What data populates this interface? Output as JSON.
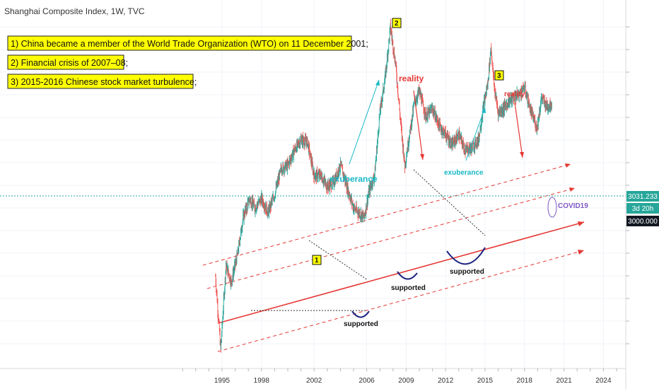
{
  "header": {
    "title": "Shanghai Composite Index, 1W, TVC"
  },
  "notes": [
    "1) China became a member of the World Trade Organization (WTO) on 11 December 2001;",
    "2) Financial crisis of 2007–08;",
    "3) 2015-2016 Chinese stock market turbulence;"
  ],
  "annotations": {
    "exuberance": "exuberance",
    "reality": "reality",
    "supported": "supported",
    "covid": "COVID19",
    "markers": [
      "1",
      "2",
      "3"
    ]
  },
  "price_scale": {
    "last_price": "3031.233",
    "countdown": "3d 20h",
    "crosshair_price": "3000.000"
  },
  "colors": {
    "up": "#26a69a",
    "down": "#ef5350",
    "channel": "#e53935",
    "exuberance": "#19b8c7",
    "supported": "#1a237e",
    "covid": "#7e57c2",
    "last_price_bg": "#26a69a",
    "crosshair_bg": "#131722"
  },
  "chart_data": {
    "type": "line",
    "x_axis": {
      "ticks": [
        "1995",
        "1998",
        "2002",
        "2006",
        "2009",
        "2012",
        "2015",
        "2018",
        "2021",
        "2024"
      ]
    },
    "y_axis": {
      "tick_labels_printed": false,
      "highlighted_levels": [
        3031.233,
        3000.0
      ]
    },
    "series": [
      {
        "x": [
          1994.5,
          1994.9,
          1995.3,
          1995.7,
          1996.2,
          1996.6,
          1997.1,
          1997.5,
          1998.0,
          1998.5,
          1999.0,
          1999.5,
          2000.0,
          2000.5,
          2001.0,
          2001.5,
          2002.0,
          2002.5,
          2003.0,
          2003.5,
          2004.0,
          2004.5,
          2005.0,
          2005.4,
          2005.8,
          2006.2,
          2006.6,
          2007.0,
          2007.4,
          2007.8,
          2008.2,
          2008.6,
          2008.9,
          2009.2,
          2009.6,
          2010.0,
          2010.5,
          2011.0,
          2011.5,
          2012.0,
          2012.5,
          2013.0,
          2013.5,
          2014.0,
          2014.5,
          2014.9,
          2015.2,
          2015.45,
          2015.7,
          2016.0,
          2016.4,
          2016.8,
          2017.2,
          2017.6,
          2018.0,
          2018.5,
          2018.95,
          2019.3,
          2019.7,
          2020.1
        ],
        "y": [
          650,
          340,
          720,
          620,
          800,
          1100,
          1300,
          1200,
          1300,
          1150,
          1350,
          1700,
          1750,
          2000,
          2200,
          2150,
          1600,
          1600,
          1450,
          1500,
          1750,
          1450,
          1200,
          1150,
          1100,
          1400,
          1600,
          2800,
          3800,
          6000,
          4300,
          2500,
          1750,
          2200,
          3000,
          3400,
          2700,
          2900,
          2500,
          2300,
          2100,
          2300,
          2000,
          2050,
          2200,
          3000,
          3600,
          5000,
          3500,
          2800,
          2900,
          3100,
          3200,
          3300,
          3500,
          2800,
          2450,
          3200,
          2950,
          3031
        ]
      }
    ]
  }
}
